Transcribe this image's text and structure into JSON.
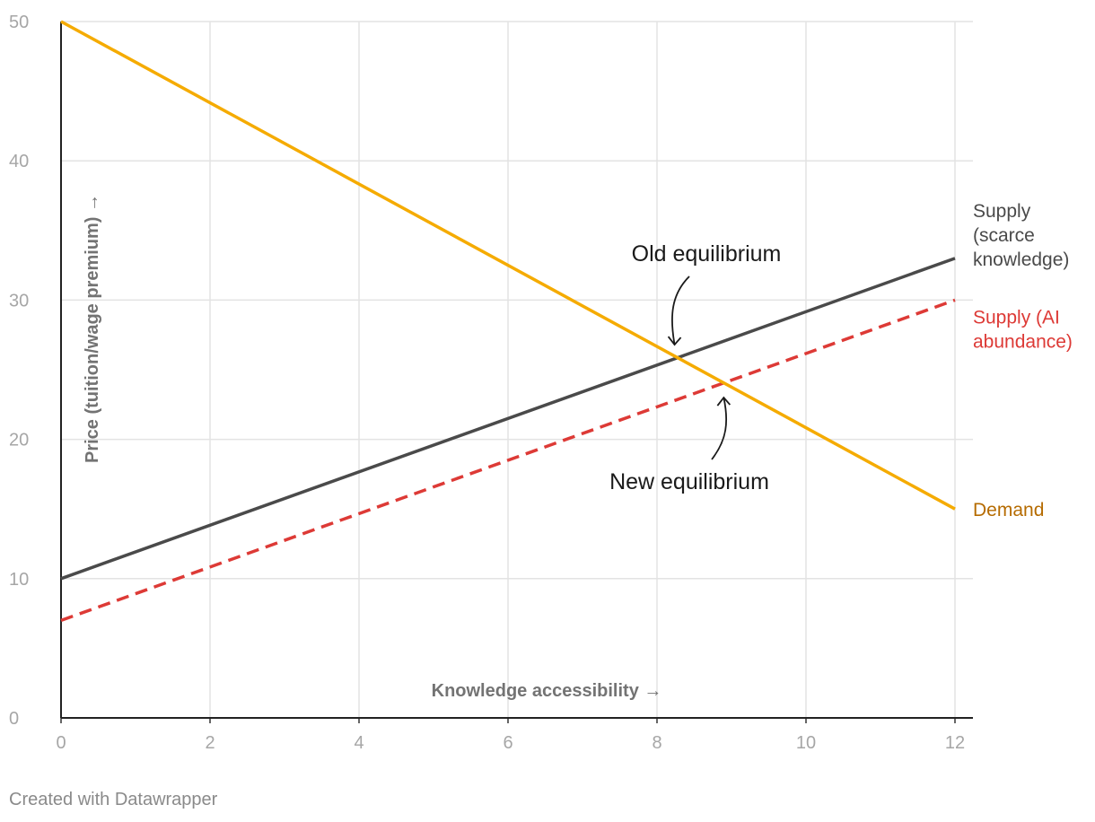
{
  "chart_data": {
    "type": "line",
    "xlabel": "Knowledge accessibility →",
    "ylabel": "Price (tuition/wage premium) →",
    "xlim": [
      0,
      12
    ],
    "ylim": [
      0,
      50
    ],
    "x_ticks": [
      0,
      2,
      4,
      6,
      8,
      10,
      12
    ],
    "y_ticks": [
      0,
      10,
      20,
      30,
      40,
      50
    ],
    "grid": true,
    "series": [
      {
        "name": "Supply (scarce knowledge)",
        "label_lines": [
          "Supply",
          "(scarce",
          "knowledge)"
        ],
        "x": [
          0,
          12
        ],
        "y": [
          10,
          33
        ],
        "color": "#4a4a4a",
        "label_color": "#4a4a4a",
        "style": "solid"
      },
      {
        "name": "Supply (AI abundance)",
        "label_lines": [
          "Supply (AI",
          "abundance)"
        ],
        "x": [
          0,
          12
        ],
        "y": [
          7,
          30
        ],
        "color": "#dd3a36",
        "label_color": "#dd3a36",
        "style": "dashed"
      },
      {
        "name": "Demand",
        "label_lines": [
          "Demand"
        ],
        "x": [
          0,
          12
        ],
        "y": [
          50,
          15
        ],
        "color": "#f5ab00",
        "label_color": "#b56b00",
        "style": "solid"
      }
    ],
    "annotations": [
      {
        "text": "Old equilibrium",
        "point": [
          8.26,
          25.9
        ],
        "anchor": [
          8.26,
          33
        ]
      },
      {
        "text": "New equilibrium",
        "point": [
          8.92,
          23.9
        ],
        "anchor": [
          8.92,
          17
        ]
      }
    ]
  },
  "credit": "Created with Datawrapper"
}
